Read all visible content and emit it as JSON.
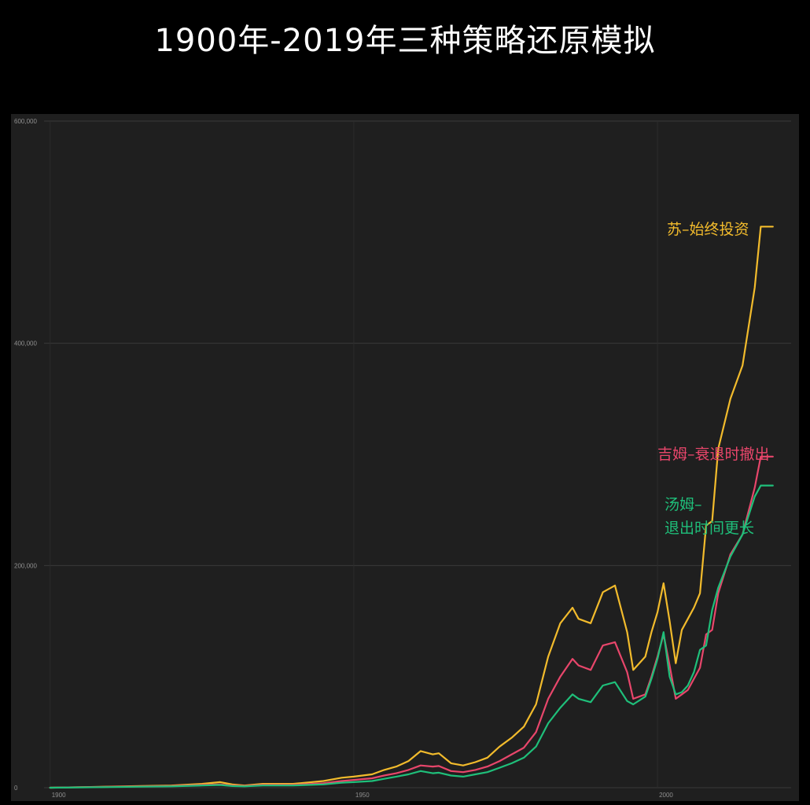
{
  "title": "1900年-2019年三种策略还原模拟",
  "colors": {
    "background": "#000000",
    "plot_background": "#1f1f1f",
    "grid": "#3a3a3a",
    "tick_text": "#8f8f8f",
    "title_text": "#ffffff"
  },
  "chart_data": {
    "type": "line",
    "title": "1900年-2019年三种策略还原模拟",
    "xlabel": "",
    "ylabel": "",
    "xlim": [
      1899,
      2022
    ],
    "ylim": [
      0,
      600000
    ],
    "x_ticks": [
      {
        "value": 1900,
        "label": "1900"
      },
      {
        "value": 1950,
        "label": "1950"
      },
      {
        "value": 2000,
        "label": "2000"
      }
    ],
    "y_ticks": [
      {
        "value": 0,
        "label": "0"
      },
      {
        "value": 200000,
        "label": "200,000"
      },
      {
        "value": 400000,
        "label": "400,000"
      },
      {
        "value": 600000,
        "label": "600,000"
      }
    ],
    "grid": true,
    "legend": "end-of-line labels",
    "series": [
      {
        "name": "苏–始终投资",
        "label_lines": [
          "苏–始终投资"
        ],
        "color": "#f2bb2c",
        "x": [
          1900,
          1905,
          1910,
          1915,
          1920,
          1925,
          1928,
          1930,
          1932,
          1935,
          1940,
          1945,
          1948,
          1950,
          1953,
          1955,
          1957,
          1959,
          1961,
          1963,
          1964,
          1966,
          1968,
          1970,
          1972,
          1974,
          1976,
          1978,
          1980,
          1982,
          1984,
          1986,
          1987,
          1989,
          1991,
          1993,
          1995,
          1996,
          1998,
          1999,
          2000,
          2001,
          2002,
          2003,
          2004,
          2005,
          2006,
          2007,
          2008,
          2009,
          2010,
          2012,
          2014,
          2016,
          2017,
          2018,
          2019
        ],
        "y": [
          0,
          500,
          1000,
          1500,
          2000,
          3500,
          5000,
          3000,
          2000,
          3500,
          3500,
          6000,
          9000,
          10000,
          12000,
          16000,
          19000,
          24000,
          33000,
          30000,
          31000,
          22000,
          20000,
          23000,
          27000,
          37000,
          45000,
          55000,
          75000,
          118000,
          148000,
          162000,
          152000,
          148000,
          176000,
          182000,
          140000,
          106000,
          118000,
          140000,
          158000,
          184000,
          150000,
          112000,
          142000,
          152000,
          162000,
          175000,
          236000,
          240000,
          305000,
          350000,
          380000,
          450000,
          505000,
          505000,
          505000
        ]
      },
      {
        "name": "吉姆–衰退时撤出",
        "label_lines": [
          "吉姆–衰退时撤出"
        ],
        "color": "#e8466b",
        "x": [
          1900,
          1905,
          1910,
          1915,
          1920,
          1925,
          1928,
          1930,
          1932,
          1935,
          1940,
          1945,
          1948,
          1950,
          1953,
          1955,
          1957,
          1959,
          1961,
          1963,
          1964,
          1966,
          1968,
          1970,
          1972,
          1974,
          1976,
          1978,
          1980,
          1982,
          1984,
          1986,
          1987,
          1989,
          1991,
          1993,
          1995,
          1996,
          1998,
          1999,
          2000,
          2001,
          2002,
          2003,
          2004,
          2005,
          2006,
          2007,
          2008,
          2009,
          2010,
          2012,
          2014,
          2016,
          2017,
          2018,
          2019
        ],
        "y": [
          0,
          400,
          800,
          1200,
          1500,
          2500,
          3000,
          2000,
          1500,
          2500,
          2500,
          4000,
          6000,
          7000,
          8500,
          11000,
          13000,
          16000,
          20000,
          19000,
          19500,
          15000,
          14000,
          16000,
          19000,
          24000,
          30000,
          36000,
          50000,
          80000,
          100000,
          116000,
          110000,
          106000,
          128000,
          131000,
          104000,
          80000,
          84000,
          100000,
          118000,
          138000,
          110000,
          80000,
          84000,
          88000,
          98000,
          108000,
          138000,
          142000,
          175000,
          210000,
          228000,
          270000,
          298000,
          298000,
          298000
        ]
      },
      {
        "name": "汤姆–退出时间更长",
        "label_lines": [
          "汤姆–",
          "退出时间更长"
        ],
        "color": "#1fbf7a",
        "x": [
          1900,
          1905,
          1910,
          1915,
          1920,
          1925,
          1928,
          1930,
          1932,
          1935,
          1940,
          1945,
          1948,
          1950,
          1953,
          1955,
          1957,
          1959,
          1961,
          1963,
          1964,
          1966,
          1968,
          1970,
          1972,
          1974,
          1976,
          1978,
          1980,
          1982,
          1984,
          1986,
          1987,
          1989,
          1991,
          1993,
          1995,
          1996,
          1998,
          1999,
          2000,
          2001,
          2002,
          2003,
          2004,
          2005,
          2006,
          2007,
          2008,
          2009,
          2010,
          2012,
          2014,
          2016,
          2017,
          2018,
          2019
        ],
        "y": [
          0,
          300,
          600,
          900,
          1200,
          2000,
          2500,
          1500,
          1200,
          2000,
          2000,
          3000,
          4500,
          5000,
          6000,
          8000,
          10000,
          12000,
          15000,
          13000,
          13500,
          11000,
          10000,
          12000,
          14000,
          18000,
          22000,
          27000,
          37000,
          58000,
          72000,
          84000,
          80000,
          77000,
          92000,
          95000,
          78000,
          75000,
          82000,
          98000,
          116000,
          140000,
          100000,
          84000,
          86000,
          92000,
          104000,
          124000,
          128000,
          160000,
          180000,
          208000,
          228000,
          262000,
          272000,
          272000,
          272000
        ]
      }
    ]
  }
}
